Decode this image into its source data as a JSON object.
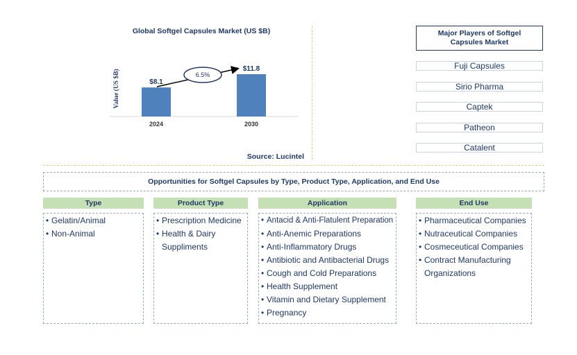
{
  "chart_data": {
    "type": "bar",
    "title": "Global Softgel Capsules Market (US $B)",
    "ylabel": "Value (US $B)",
    "categories": [
      "2024",
      "2030"
    ],
    "values": [
      8.1,
      11.8
    ],
    "value_labels": [
      "$8.1",
      "$11.8"
    ],
    "cagr_label": "6.5%",
    "source": "Source: Lucintel",
    "colors": {
      "bar": "#4f81bd",
      "text": "#1f3864"
    }
  },
  "players": {
    "title": "Major Players of Softgel Capsules Market",
    "items": [
      "Fuji Capsules",
      "Sirio Pharma",
      "Captek",
      "Patheon",
      "Catalent"
    ]
  },
  "opportunities": {
    "title": "Opportunities for Softgel Capsules by Type, Product Type, Application, and End Use",
    "columns": [
      {
        "header": "Type",
        "items": [
          "Gelatin/Animal",
          "Non-Animal"
        ]
      },
      {
        "header": "Product Type",
        "items": [
          "Prescription Medicine",
          "Health & Dairy Suppliments"
        ]
      },
      {
        "header": "Application",
        "items": [
          "Antacid & Anti-Flatulent Preparation",
          "Anti-Anemic Preparations",
          "Anti-Inflammatory Drugs",
          "Antibiotic and Antibacterial Drugs",
          "Cough and Cold Preparations",
          "Health Supplement",
          "Vitamin and Dietary Supplement",
          "Pregnancy"
        ]
      },
      {
        "header": "End Use",
        "items": [
          "Pharmaceutical Companies",
          "Nutraceutical Companies",
          "Cosmeceutical Companies",
          "Contract Manufacturing Organizations"
        ]
      }
    ],
    "colors": {
      "header_bg": "#c5e0b4"
    }
  }
}
